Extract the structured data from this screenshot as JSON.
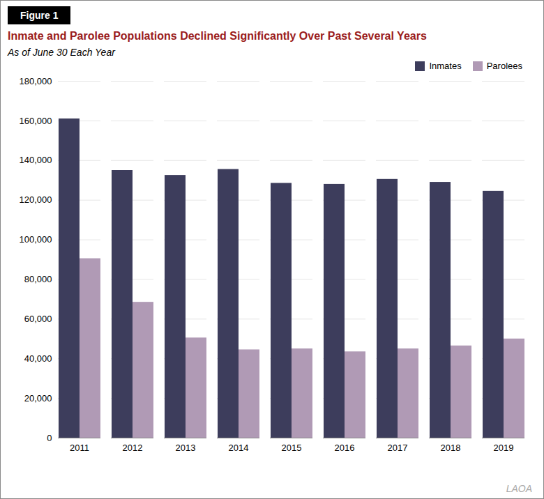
{
  "chart_data": {
    "type": "bar",
    "title": "Inmate and Parolee Populations Declined Significantly Over Past Several Years",
    "subtitle": "As of June 30 Each Year",
    "annotations": [
      "Figure 1",
      "LAOA"
    ],
    "categories": [
      "2011",
      "2012",
      "2013",
      "2014",
      "2015",
      "2016",
      "2017",
      "2018",
      "2019"
    ],
    "series": [
      {
        "name": "Inmates",
        "color": "#3d3d5c",
        "values": [
          161000,
          135000,
          132500,
          135500,
          128500,
          128000,
          130500,
          129000,
          124500
        ]
      },
      {
        "name": "Parolees",
        "color": "#b09ab5",
        "values": [
          90500,
          68500,
          50500,
          44500,
          45000,
          43500,
          45000,
          46500,
          50000
        ]
      }
    ],
    "ylim": [
      0,
      180000
    ],
    "yticks": [
      0,
      {
        "value": 20000,
        "label": "20,000"
      },
      {
        "value": 40000,
        "label": "40,000"
      },
      {
        "value": 60000,
        "label": "60,000"
      },
      {
        "value": 80000,
        "label": "80,000"
      },
      {
        "value": 100000,
        "label": "100,000"
      },
      {
        "value": 120000,
        "label": "120,000"
      },
      {
        "value": 140000,
        "label": "140,000"
      },
      {
        "value": 160000,
        "label": "160,000"
      },
      {
        "value": 180000,
        "label": "180,000"
      }
    ],
    "grid": true,
    "legend": "upper right"
  }
}
